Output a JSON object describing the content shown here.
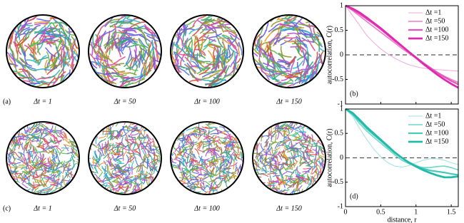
{
  "panels": [
    {
      "label": "(a)",
      "captions": [
        "Δt = 1",
        "Δt = 50",
        "Δt = 100",
        "Δt = 150"
      ]
    },
    {
      "label": "(c)",
      "captions": [
        "Δt = 1",
        "Δt = 50",
        "Δt = 100",
        "Δt = 150"
      ]
    }
  ],
  "chart_data": [
    {
      "type": "line",
      "panel_label": "(b)",
      "y_label": "autocorrelation, C(r)",
      "x": [
        0,
        0.1,
        0.2,
        0.3,
        0.4,
        0.5,
        0.6,
        0.7,
        0.8,
        0.9,
        1.0,
        1.1,
        1.2,
        1.3,
        1.4,
        1.5,
        1.6
      ],
      "xlim": [
        0,
        1.6
      ],
      "xticks": [
        0,
        0.5,
        1,
        1.5
      ],
      "ylim": [
        -1,
        1
      ],
      "yticks": [
        -1,
        -0.5,
        0,
        0.5,
        1
      ],
      "reference_line": 0,
      "legend": "upper right",
      "series": [
        {
          "name": "Δt =1",
          "color": "#f4a6d7",
          "values": [
            1,
            0.8,
            0.6,
            0.4,
            0.25,
            0.12,
            0.02,
            -0.07,
            -0.14,
            -0.2,
            -0.24,
            -0.27,
            -0.29,
            -0.3,
            -0.31,
            -0.32,
            -0.33
          ]
        },
        {
          "name": "Δt =50",
          "color": "#ee7ac8",
          "values": [
            1,
            0.9,
            0.79,
            0.68,
            0.57,
            0.46,
            0.35,
            0.24,
            0.13,
            0.03,
            -0.07,
            -0.17,
            -0.26,
            -0.35,
            -0.43,
            -0.5,
            -0.56
          ]
        },
        {
          "name": "Δt =100",
          "color": "#e654bd",
          "values": [
            1,
            0.92,
            0.83,
            0.73,
            0.63,
            0.52,
            0.4,
            0.28,
            0.17,
            0.06,
            -0.05,
            -0.16,
            -0.26,
            -0.36,
            -0.45,
            -0.53,
            -0.6
          ]
        },
        {
          "name": "Δt =150",
          "color": "#df2ab0",
          "values": [
            1,
            0.94,
            0.86,
            0.76,
            0.65,
            0.54,
            0.42,
            0.3,
            0.18,
            0.06,
            -0.06,
            -0.18,
            -0.29,
            -0.4,
            -0.5,
            -0.59,
            -0.67
          ]
        }
      ]
    },
    {
      "type": "line",
      "panel_label": "(d)",
      "y_label": "autocorrelation, C(r)",
      "x_label": "distance, r",
      "x": [
        0,
        0.1,
        0.2,
        0.3,
        0.4,
        0.5,
        0.6,
        0.7,
        0.8,
        0.9,
        1.0,
        1.1,
        1.2,
        1.3,
        1.4,
        1.5,
        1.6
      ],
      "xlim": [
        0,
        1.6
      ],
      "xticks": [
        0,
        0.5,
        1,
        1.5
      ],
      "ylim": [
        -1,
        1
      ],
      "yticks": [
        -1,
        -0.5,
        0,
        0.5,
        1
      ],
      "reference_line": 0,
      "legend": "upper right",
      "series": [
        {
          "name": "Δt =1",
          "color": "#9fe3db",
          "values": [
            1,
            0.85,
            0.6,
            0.38,
            0.18,
            0.02,
            -0.1,
            -0.17,
            -0.19,
            -0.16,
            -0.1,
            -0.05,
            -0.02,
            -0.02,
            -0.05,
            -0.1,
            -0.14
          ]
        },
        {
          "name": "Δt =50",
          "color": "#6fd6ca",
          "values": [
            1,
            0.88,
            0.7,
            0.55,
            0.42,
            0.3,
            0.18,
            0.06,
            -0.05,
            -0.12,
            -0.17,
            -0.2,
            -0.2,
            -0.18,
            -0.17,
            -0.2,
            -0.25
          ]
        },
        {
          "name": "Δt =100",
          "color": "#45c9b9",
          "values": [
            1,
            0.9,
            0.75,
            0.6,
            0.47,
            0.35,
            0.22,
            0.1,
            0,
            -0.09,
            -0.16,
            -0.22,
            -0.26,
            -0.28,
            -0.3,
            -0.33,
            -0.35
          ]
        },
        {
          "name": "Δt =150",
          "color": "#22bba9",
          "values": [
            1,
            0.92,
            0.78,
            0.63,
            0.5,
            0.37,
            0.24,
            0.11,
            0,
            -0.1,
            -0.18,
            -0.25,
            -0.31,
            -0.36,
            -0.4,
            -0.4,
            -0.38
          ]
        }
      ]
    }
  ]
}
